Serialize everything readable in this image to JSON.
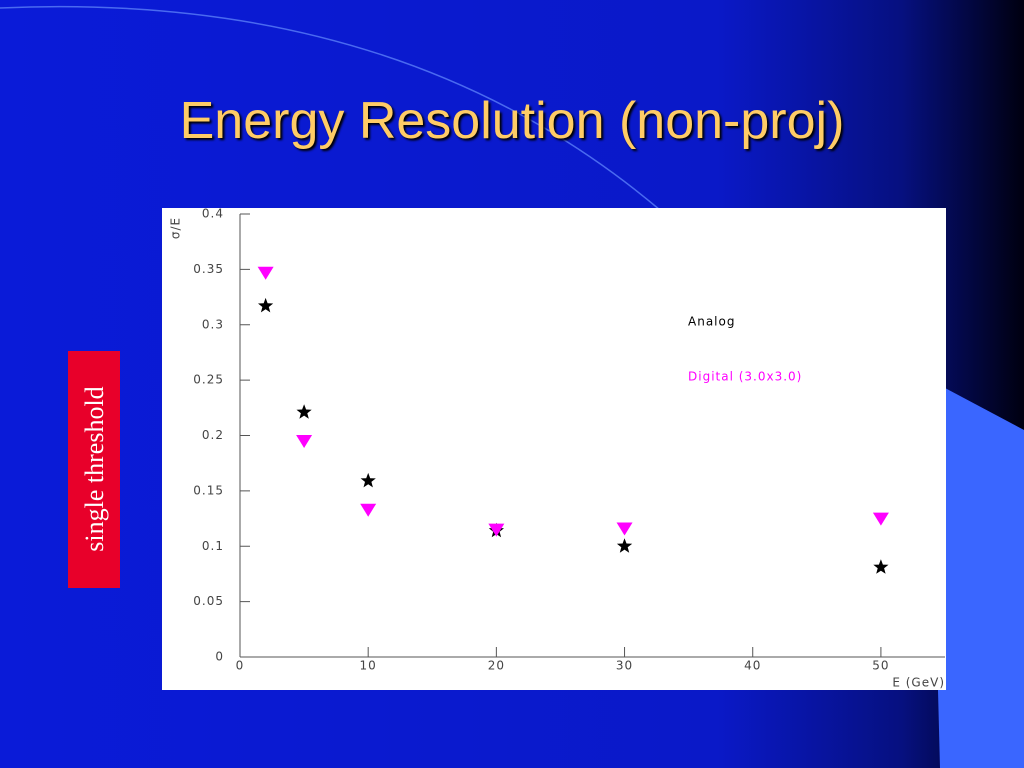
{
  "slide_title": "Energy Resolution (non-proj)",
  "side_label": "single threshold",
  "chart_data": {
    "type": "scatter",
    "x_label": "E (GeV)",
    "y_label": "σ/E",
    "xlim": [
      0,
      55
    ],
    "ylim": [
      0,
      0.4
    ],
    "xticks": [
      0,
      10,
      20,
      30,
      40,
      50
    ],
    "yticks": [
      0,
      0.05,
      0.1,
      0.15,
      0.2,
      0.25,
      0.3,
      0.35,
      0.4
    ],
    "series": [
      {
        "name": "Analog",
        "color": "#000000",
        "marker": "star",
        "x": [
          2,
          5,
          10,
          20,
          30,
          50
        ],
        "values": [
          0.317,
          0.221,
          0.159,
          0.114,
          0.1,
          0.081
        ]
      },
      {
        "name": "Digital (3.0x3.0)",
        "color": "#ff00ff",
        "marker": "triangle-down",
        "x": [
          2,
          5,
          10,
          20,
          30,
          50
        ],
        "values": [
          0.347,
          0.195,
          0.133,
          0.115,
          0.116,
          0.125
        ]
      }
    ]
  }
}
